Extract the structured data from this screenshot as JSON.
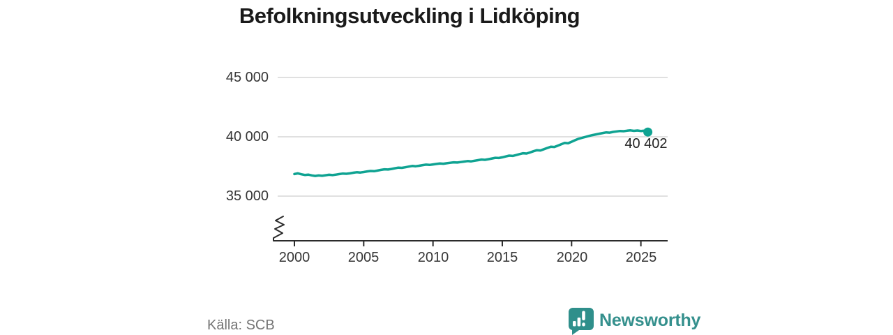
{
  "title": "Befolkningsutveckling i Lidköping",
  "source": "Källa: SCB",
  "branding": {
    "name": "Newsworthy",
    "icon": "speech-bubble-bar-chart"
  },
  "colors": {
    "line": "#0fa392",
    "grid": "#dbdbdb",
    "axis": "#2b2b2b",
    "title_text": "#1a1a1a",
    "tick_text": "#363636",
    "muted_text": "#747474",
    "brand_teal": "#2f8f8b"
  },
  "chart_data": {
    "type": "line",
    "title": "Befolkningsutveckling i Lidköping",
    "xlabel": "",
    "ylabel": "",
    "legend": "none",
    "grid": "horizontal-only",
    "axis_break_bottom_left": true,
    "x_range": [
      2000,
      2025.5
    ],
    "ylim_visible": [
      34000,
      46000
    ],
    "x_tick_values": [
      2000,
      2005,
      2010,
      2015,
      2020,
      2025
    ],
    "x_tick_labels": [
      "2000",
      "2005",
      "2010",
      "2015",
      "2020",
      "2025"
    ],
    "y_tick_values": [
      45000,
      40000,
      35000
    ],
    "y_tick_labels": [
      "45 000",
      "40 000",
      "35 000"
    ],
    "end_label": "40 402",
    "end_value": 40402,
    "series": [
      {
        "name": "Befolkning",
        "x_start": 2000,
        "x_step": 0.25,
        "values": [
          36860,
          36920,
          36840,
          36780,
          36810,
          36750,
          36700,
          36740,
          36710,
          36760,
          36800,
          36770,
          36810,
          36860,
          36900,
          36880,
          36920,
          36970,
          37010,
          36990,
          37030,
          37080,
          37120,
          37100,
          37150,
          37210,
          37260,
          37240,
          37290,
          37350,
          37400,
          37380,
          37430,
          37490,
          37540,
          37520,
          37560,
          37610,
          37650,
          37630,
          37670,
          37710,
          37750,
          37730,
          37770,
          37810,
          37850,
          37830,
          37870,
          37910,
          37950,
          37930,
          37980,
          38030,
          38080,
          38060,
          38110,
          38170,
          38230,
          38210,
          38270,
          38340,
          38410,
          38390,
          38460,
          38540,
          38610,
          38590,
          38680,
          38780,
          38870,
          38850,
          38950,
          39060,
          39160,
          39140,
          39250,
          39370,
          39480,
          39460,
          39580,
          39710,
          39830,
          39910,
          39990,
          40070,
          40140,
          40200,
          40260,
          40320,
          40370,
          40350,
          40410,
          40450,
          40490,
          40470,
          40510,
          40540,
          40500,
          40530,
          40490,
          40520,
          40402
        ]
      }
    ]
  }
}
